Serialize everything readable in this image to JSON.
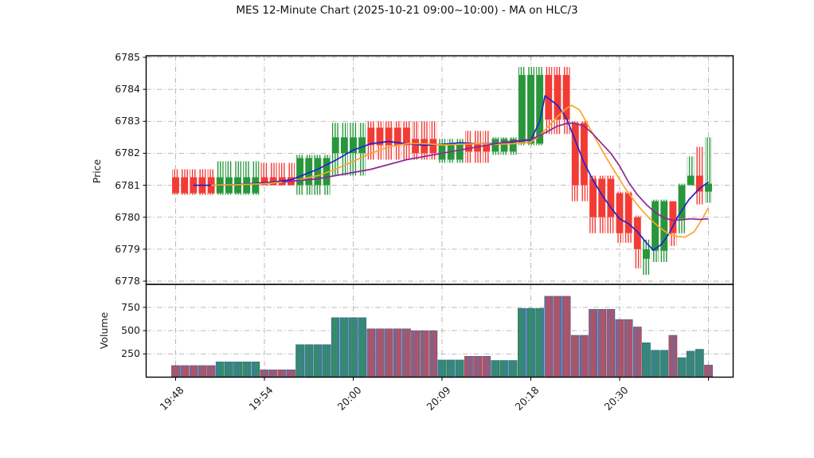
{
  "title": "MES 12-Minute Chart (2025-10-21 09:00~10:00) - MA on HLC/3",
  "colors": {
    "up": "#28963c",
    "down": "#f23b35",
    "volume_base": "#4678b4",
    "ma_fast": "#2222cc",
    "ma_mid": "#ffa428",
    "ma_slow": "#8e2699",
    "grid": "#b0b0b0",
    "axis": "#000000",
    "text": "#1a1a1a"
  },
  "chart_data": {
    "type": "candlestick_volume",
    "title": "MES 12-Minute Chart (2025-10-21 09:00~10:00) - MA on HLC/3",
    "ylabel_price": "Price",
    "ylabel_volume": "Volume",
    "grid": "dash-dot",
    "price_ylim": [
      6777.9,
      6785.05
    ],
    "volume_ylim": [
      0,
      980
    ],
    "price_yticks": [
      6785,
      6784,
      6783,
      6782,
      6781,
      6780,
      6779,
      6778
    ],
    "volume_yticks": [
      750,
      500,
      250
    ],
    "x_tick_bar_indices": [
      0,
      10,
      20,
      30,
      40,
      50,
      60
    ],
    "x_ticklabels": [
      "19:48",
      "19:54",
      "20:00",
      "20:09",
      "20:18",
      "20:30",
      ""
    ],
    "candle_groups": [
      {
        "count": 5,
        "dir": "down",
        "open": 6781.25,
        "high": 6781.5,
        "low": 6780.7,
        "close": 6780.75,
        "volume": 125
      },
      {
        "count": 5,
        "dir": "up",
        "open": 6780.75,
        "high": 6781.75,
        "low": 6780.7,
        "close": 6781.25,
        "volume": 165
      },
      {
        "count": 4,
        "dir": "down",
        "open": 6781.25,
        "high": 6781.7,
        "low": 6781.0,
        "close": 6781.0,
        "volume": 80
      },
      {
        "count": 4,
        "dir": "up",
        "open": 6781.0,
        "high": 6781.95,
        "low": 6780.7,
        "close": 6781.85,
        "volume": 350
      },
      {
        "count": 4,
        "dir": "up",
        "open": 6782.0,
        "high": 6782.95,
        "low": 6781.3,
        "close": 6782.5,
        "volume": 640
      },
      {
        "count": 5,
        "dir": "down",
        "open": 6782.8,
        "high": 6783.0,
        "low": 6781.8,
        "close": 6782.25,
        "volume": 520
      },
      {
        "count": 3,
        "dir": "down",
        "open": 6782.45,
        "high": 6783.0,
        "low": 6781.8,
        "close": 6782.0,
        "volume": 500
      },
      {
        "count": 3,
        "dir": "up",
        "open": 6781.8,
        "high": 6782.45,
        "low": 6781.7,
        "close": 6782.3,
        "volume": 185
      },
      {
        "count": 3,
        "dir": "down",
        "open": 6782.3,
        "high": 6782.7,
        "low": 6781.7,
        "close": 6782.05,
        "volume": 225
      },
      {
        "count": 3,
        "dir": "up",
        "open": 6782.05,
        "high": 6782.5,
        "low": 6781.95,
        "close": 6782.45,
        "volume": 180
      },
      {
        "count": 3,
        "dir": "up",
        "open": 6782.3,
        "high": 6784.7,
        "low": 6782.25,
        "close": 6784.45,
        "volume": 740
      },
      {
        "count": 3,
        "dir": "down",
        "open": 6784.45,
        "high": 6784.7,
        "low": 6782.6,
        "close": 6783.05,
        "volume": 870
      },
      {
        "count": 2,
        "dir": "down",
        "open": 6782.95,
        "high": 6783.0,
        "low": 6780.5,
        "close": 6781.0,
        "volume": 450
      },
      {
        "count": 3,
        "dir": "down",
        "open": 6781.2,
        "high": 6781.3,
        "low": 6779.5,
        "close": 6780.0,
        "volume": 730
      },
      {
        "count": 2,
        "dir": "down",
        "open": 6780.75,
        "high": 6780.8,
        "low": 6779.2,
        "close": 6779.5,
        "volume": 620
      },
      {
        "count": 1,
        "dir": "down",
        "open": 6780.0,
        "high": 6780.05,
        "low": 6778.4,
        "close": 6779.0,
        "volume": 540
      },
      {
        "count": 1,
        "dir": "up",
        "open": 6778.7,
        "high": 6779.3,
        "low": 6778.2,
        "close": 6779.0,
        "volume": 370
      },
      {
        "count": 2,
        "dir": "up",
        "open": 6778.95,
        "high": 6780.55,
        "low": 6778.6,
        "close": 6780.5,
        "volume": 290
      },
      {
        "count": 1,
        "dir": "down",
        "open": 6780.5,
        "high": 6780.5,
        "low": 6779.1,
        "close": 6779.5,
        "volume": 450
      },
      {
        "count": 1,
        "dir": "up",
        "open": 6779.95,
        "high": 6781.05,
        "low": 6779.5,
        "close": 6781.0,
        "volume": 210
      },
      {
        "count": 1,
        "dir": "up",
        "open": 6781.0,
        "high": 6781.9,
        "low": 6781.0,
        "close": 6781.3,
        "volume": 280
      },
      {
        "count": 1,
        "dir": "down",
        "open": 6781.3,
        "high": 6782.2,
        "low": 6780.4,
        "close": 6780.8,
        "volume": 300,
        "volume_dir": "up"
      },
      {
        "count": 1,
        "dir": "up",
        "open": 6780.8,
        "high": 6782.5,
        "low": 6780.45,
        "close": 6781.05,
        "volume": 130,
        "volume_dir": "down"
      }
    ],
    "ma_lines": [
      {
        "name": "ma-fast",
        "color_key": "ma_fast",
        "points": [
          [
            2,
            6781.0
          ],
          [
            5,
            6781.0
          ],
          [
            8,
            6781.04
          ],
          [
            11,
            6781.1
          ],
          [
            13,
            6781.17
          ],
          [
            14,
            6781.28
          ],
          [
            16,
            6781.5
          ],
          [
            18,
            6781.78
          ],
          [
            20,
            6782.1
          ],
          [
            22,
            6782.3
          ],
          [
            24,
            6782.37
          ],
          [
            26,
            6782.3
          ],
          [
            28,
            6782.25
          ],
          [
            30,
            6782.28
          ],
          [
            32,
            6782.33
          ],
          [
            34,
            6782.3
          ],
          [
            36,
            6782.3
          ],
          [
            38,
            6782.36
          ],
          [
            40,
            6782.42
          ],
          [
            41,
            6783.0
          ],
          [
            41.6,
            6783.8
          ],
          [
            43,
            6783.5
          ],
          [
            44,
            6783.1
          ],
          [
            45,
            6782.4
          ],
          [
            46,
            6781.7
          ],
          [
            47,
            6781.15
          ],
          [
            48,
            6780.7
          ],
          [
            49,
            6780.3
          ],
          [
            50,
            6779.95
          ],
          [
            51,
            6779.8
          ],
          [
            52,
            6779.55
          ],
          [
            53,
            6779.2
          ],
          [
            53.8,
            6778.97
          ],
          [
            54.7,
            6779.15
          ],
          [
            55.6,
            6779.5
          ],
          [
            56.5,
            6780.0
          ],
          [
            57.8,
            6780.55
          ],
          [
            59,
            6780.9
          ],
          [
            60,
            6781.1
          ]
        ]
      },
      {
        "name": "ma-mid",
        "color_key": "ma_mid",
        "points": [
          [
            4,
            6781.0
          ],
          [
            7,
            6781.02
          ],
          [
            10,
            6781.05
          ],
          [
            13,
            6781.12
          ],
          [
            16,
            6781.3
          ],
          [
            18,
            6781.5
          ],
          [
            20,
            6781.75
          ],
          [
            22,
            6782.0
          ],
          [
            24,
            6782.2
          ],
          [
            26,
            6782.3
          ],
          [
            28,
            6782.3
          ],
          [
            30,
            6782.26
          ],
          [
            32,
            6782.28
          ],
          [
            34,
            6782.3
          ],
          [
            36,
            6782.28
          ],
          [
            38,
            6782.3
          ],
          [
            40,
            6782.35
          ],
          [
            41,
            6782.55
          ],
          [
            42,
            6782.85
          ],
          [
            43,
            6783.15
          ],
          [
            44,
            6783.4
          ],
          [
            44.6,
            6783.5
          ],
          [
            45.5,
            6783.35
          ],
          [
            46.4,
            6782.9
          ],
          [
            47.4,
            6782.4
          ],
          [
            48.4,
            6781.9
          ],
          [
            49.4,
            6781.45
          ],
          [
            50.4,
            6781.0
          ],
          [
            51.4,
            6780.6
          ],
          [
            52.4,
            6780.25
          ],
          [
            53.4,
            6779.95
          ],
          [
            54.4,
            6779.7
          ],
          [
            55.4,
            6779.5
          ],
          [
            56.4,
            6779.4
          ],
          [
            57.4,
            6779.38
          ],
          [
            58.4,
            6779.55
          ],
          [
            59.2,
            6779.9
          ],
          [
            60,
            6780.3
          ]
        ]
      },
      {
        "name": "ma-slow",
        "color_key": "ma_slow",
        "points": [
          [
            12,
            6781.1
          ],
          [
            14,
            6781.15
          ],
          [
            16,
            6781.2
          ],
          [
            18,
            6781.3
          ],
          [
            20,
            6781.4
          ],
          [
            22,
            6781.5
          ],
          [
            24,
            6781.65
          ],
          [
            26,
            6781.8
          ],
          [
            28,
            6781.9
          ],
          [
            30,
            6782.0
          ],
          [
            32,
            6782.1
          ],
          [
            34,
            6782.2
          ],
          [
            36,
            6782.3
          ],
          [
            38,
            6782.38
          ],
          [
            40,
            6782.44
          ],
          [
            41,
            6782.55
          ],
          [
            42,
            6782.7
          ],
          [
            43,
            6782.85
          ],
          [
            44,
            6782.93
          ],
          [
            44.8,
            6782.95
          ],
          [
            46,
            6782.85
          ],
          [
            47,
            6782.6
          ],
          [
            48,
            6782.3
          ],
          [
            49,
            6782.0
          ],
          [
            50,
            6781.6
          ],
          [
            51,
            6781.1
          ],
          [
            52,
            6780.7
          ],
          [
            53,
            6780.4
          ],
          [
            54,
            6780.15
          ],
          [
            55,
            6779.98
          ],
          [
            56,
            6779.9
          ],
          [
            57,
            6779.92
          ],
          [
            58,
            6779.95
          ],
          [
            59,
            6779.93
          ],
          [
            60,
            6779.95
          ]
        ]
      }
    ]
  }
}
